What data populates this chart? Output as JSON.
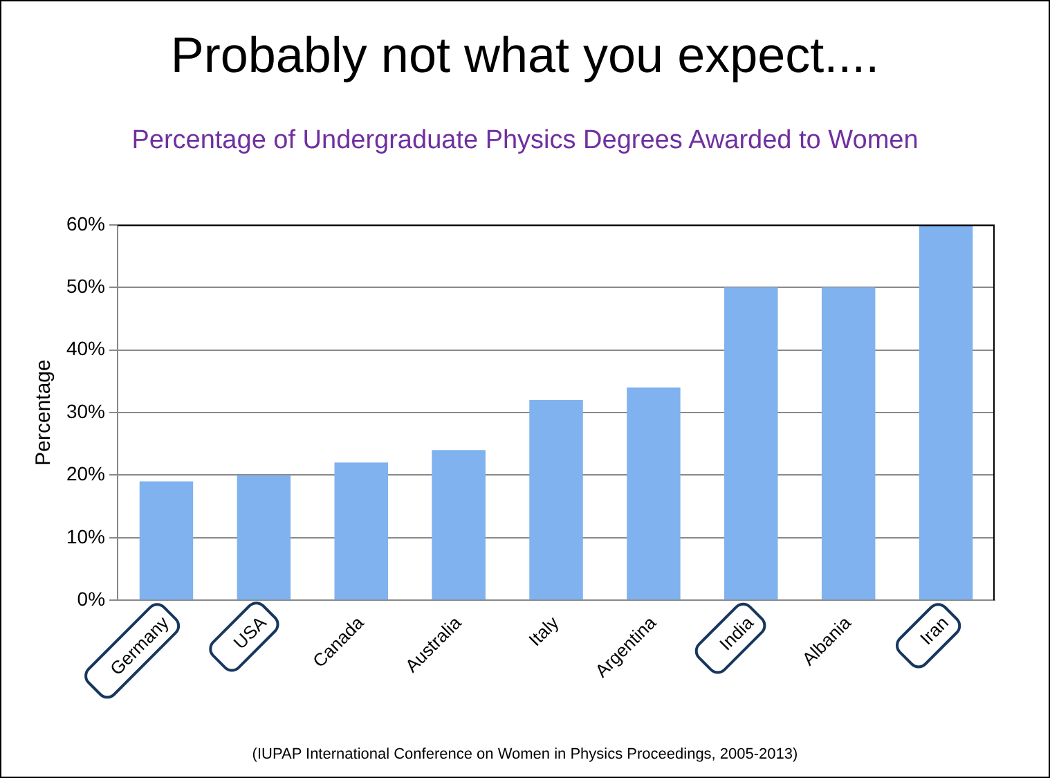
{
  "chart_data": {
    "type": "bar",
    "title": "Probably not what you expect....",
    "subtitle": "Percentage of Undergraduate Physics Degrees Awarded to Women",
    "ylabel": "Percentage",
    "categories": [
      "Germany",
      "USA",
      "Canada",
      "Australia",
      "Italy",
      "Argentina",
      "India",
      "Albania",
      "Iran"
    ],
    "values": [
      19,
      20,
      22,
      24,
      32,
      34,
      50,
      50,
      60
    ],
    "color": "#7fb2ee",
    "ylim": [
      0,
      60
    ],
    "yticks": [
      {
        "value": 0,
        "label": "0%"
      },
      {
        "value": 10,
        "label": "10%"
      },
      {
        "value": 20,
        "label": "20%"
      },
      {
        "value": 30,
        "label": "30%"
      },
      {
        "value": 40,
        "label": "40%"
      },
      {
        "value": 50,
        "label": "50%"
      },
      {
        "value": 60,
        "label": "60%"
      }
    ],
    "grid": "y",
    "legend": false,
    "annotations": [
      "(IUPAP International Conference on Women in Physics Proceedings, 2005-2013)"
    ]
  }
}
